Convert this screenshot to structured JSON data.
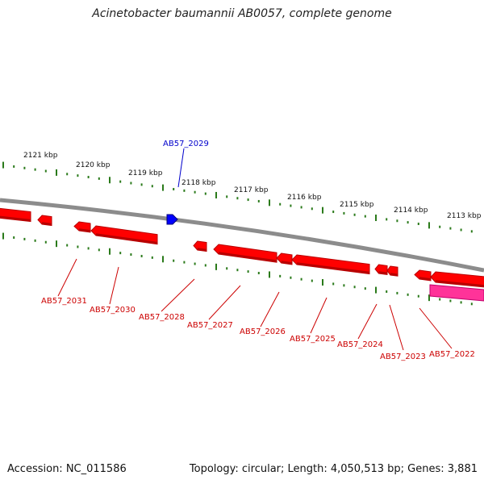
{
  "title": "Acinetobacter baumannii AB0057, complete genome",
  "footer": {
    "accession": "Accession: NC_011586",
    "summary": "Topology: circular; Length: 4,050,513 bp; Genes: 3,881"
  },
  "colors": {
    "backbone": "#8c8c8c",
    "tick": "#2a7a1a",
    "gene": "#ff0000",
    "gene_dark": "#b80000",
    "gene_selected": "#ff3399",
    "gene_blue": "#0000ff",
    "label_red": "#cc0000",
    "label_blue": "#0000cc"
  },
  "kbp_labels": [
    "2121 kbp",
    "2120 kbp",
    "2119 kbp",
    "2118 kbp",
    "2117 kbp",
    "2116 kbp",
    "2115 kbp",
    "2114 kbp",
    "2113 kbp"
  ],
  "genes": [
    {
      "label": "AB57_2031",
      "color": "red"
    },
    {
      "label": "AB57_2030",
      "color": "red"
    },
    {
      "label": "AB57_2029",
      "color": "blue"
    },
    {
      "label": "AB57_2028",
      "color": "red"
    },
    {
      "label": "AB57_2027",
      "color": "red"
    },
    {
      "label": "AB57_2026",
      "color": "red"
    },
    {
      "label": "AB57_2025",
      "color": "red"
    },
    {
      "label": "AB57_2024",
      "color": "red"
    },
    {
      "label": "AB57_2023",
      "color": "red"
    },
    {
      "label": "AB57_2022",
      "color": "pink"
    }
  ]
}
